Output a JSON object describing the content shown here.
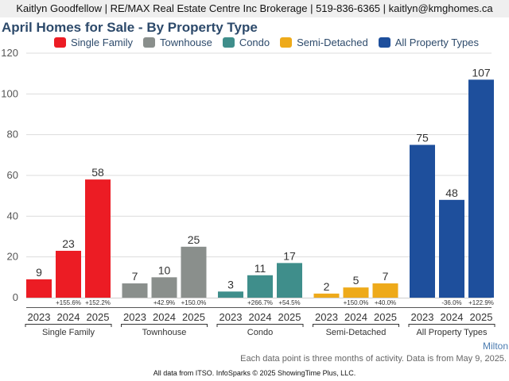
{
  "header": {
    "contact": "Kaitlyn Goodfellow | RE/MAX Real Estate Centre Inc Brokerage | 519-836-6365 | kaitlyn@kmghomes.ca"
  },
  "chart_data": {
    "type": "bar",
    "title": "April Homes for Sale - By Property Type",
    "xlabel": "",
    "ylabel": "",
    "ylim": [
      0,
      120
    ],
    "yticks": [
      0,
      20,
      40,
      60,
      80,
      100,
      120
    ],
    "grid": true,
    "legend_position": "top-center",
    "groups": [
      {
        "name": "Single Family",
        "color": "#ec1c24",
        "years": [
          "2023",
          "2024",
          "2025"
        ],
        "values": [
          9,
          23,
          58
        ],
        "changes": [
          "",
          "+155.6%",
          "+152.2%"
        ]
      },
      {
        "name": "Townhouse",
        "color": "#8a8f8c",
        "years": [
          "2023",
          "2024",
          "2025"
        ],
        "values": [
          7,
          10,
          25
        ],
        "changes": [
          "",
          "+42.9%",
          "+150.0%"
        ]
      },
      {
        "name": "Condo",
        "color": "#3f8e8b",
        "years": [
          "2023",
          "2024",
          "2025"
        ],
        "values": [
          3,
          11,
          17
        ],
        "changes": [
          "",
          "+266.7%",
          "+54.5%"
        ]
      },
      {
        "name": "Semi-Detached",
        "color": "#eeaa1a",
        "years": [
          "2023",
          "2024",
          "2025"
        ],
        "values": [
          2,
          5,
          7
        ],
        "changes": [
          "",
          "+150.0%",
          "+40.0%"
        ]
      },
      {
        "name": "All Property Types",
        "color": "#1e4f9c",
        "years": [
          "2023",
          "2024",
          "2025"
        ],
        "values": [
          75,
          48,
          107
        ],
        "changes": [
          "",
          "-36.0%",
          "+122.9%"
        ]
      }
    ],
    "legend": [
      "Single Family",
      "Townhouse",
      "Condo",
      "Semi-Detached",
      "All Property Types"
    ]
  },
  "footer": {
    "region": "Milton",
    "note": "Each data point is three months of activity. Data is from May 9, 2025.",
    "credit": "All data from ITSO. InfoSparks © 2025 ShowingTime Plus, LLC."
  }
}
